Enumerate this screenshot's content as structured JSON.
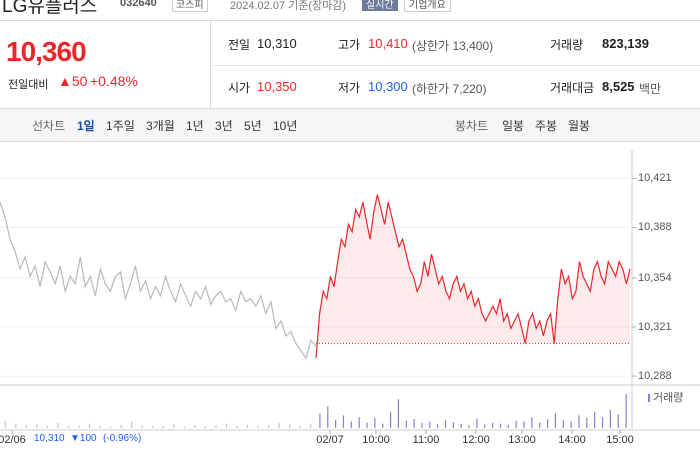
{
  "header": {
    "name": "LG유플러스",
    "code": "032640",
    "market": "코스피",
    "date": "2024.02.07 기준(장마감)",
    "realtime": "실시간",
    "company": "기업개요"
  },
  "quote": {
    "price": "10,360",
    "change_label": "전일대비",
    "change": "▲50",
    "percent": "+0.48%"
  },
  "table": {
    "rows": [
      [
        [
          "전일",
          "10,310",
          ""
        ],
        [
          "고가",
          "10,410",
          "(상한가 13,400)"
        ],
        [
          "거래량",
          "823,139",
          ""
        ]
      ],
      [
        [
          "시가",
          "10,350",
          ""
        ],
        [
          "저가",
          "10,300",
          "(하한가 7,220)"
        ],
        [
          "거래대금",
          "8,525",
          "백만"
        ]
      ]
    ]
  },
  "tabs": {
    "line": "선차트",
    "line_items": [
      "1일",
      "1주일",
      "3개월",
      "1년",
      "3년",
      "5년",
      "10년"
    ],
    "candle": "봉차트",
    "candle_items": [
      "일봉",
      "주봉",
      "월봉"
    ]
  },
  "chart_data": {
    "type": "line",
    "ylim": [
      10282,
      10440
    ],
    "yticks": [
      {
        "value": 10421,
        "label": "10,421"
      },
      {
        "value": 10388,
        "label": "10,388"
      },
      {
        "value": 10354,
        "label": "10,354"
      },
      {
        "value": 10321,
        "label": "10,321"
      },
      {
        "value": 10288,
        "label": "10,288"
      }
    ],
    "xticks": [
      "02/06",
      "02/07",
      "10:00",
      "11:00",
      "12:00",
      "13:00",
      "14:00",
      "15:00"
    ],
    "reference_line": 10310,
    "series": [
      {
        "color": "#b9b9b9",
        "values": [
          10405,
          10395,
          10380,
          10372,
          10360,
          10368,
          10355,
          10362,
          10348,
          10365,
          10358,
          10350,
          10362,
          10345,
          10355,
          10350,
          10368,
          10348,
          10355,
          10342,
          10360,
          10350,
          10345,
          10355,
          10358,
          10340,
          10350,
          10362,
          10345,
          10352,
          10340,
          10348,
          10342,
          10355,
          10345,
          10338,
          10350,
          10342,
          10335,
          10345,
          10340,
          10348,
          10336,
          10342,
          10345,
          10338,
          10340,
          10332,
          10345,
          10338,
          10340,
          10335,
          10342,
          10330,
          10338,
          10320,
          10325,
          10315,
          10318,
          10310,
          10305,
          10300,
          10312,
          10308
        ]
      },
      {
        "color": "#e8272c",
        "values": [
          10300,
          10330,
          10345,
          10340,
          10355,
          10348,
          10365,
          10380,
          10375,
          10390,
          10385,
          10400,
          10395,
          10405,
          10392,
          10380,
          10398,
          10410,
          10400,
          10390,
          10405,
          10395,
          10385,
          10375,
          10380,
          10370,
          10360,
          10355,
          10345,
          10350,
          10365,
          10355,
          10370,
          10360,
          10350,
          10355,
          10345,
          10340,
          10350,
          10355,
          10345,
          10350,
          10340,
          10345,
          10335,
          10340,
          10330,
          10325,
          10330,
          10335,
          10330,
          10340,
          10325,
          10330,
          10320,
          10325,
          10330,
          10320,
          10310,
          10325,
          10330,
          10320,
          10325,
          10315,
          10325,
          10330,
          10310,
          10340,
          10360,
          10350,
          10355,
          10340,
          10345,
          10365,
          10355,
          10350,
          10345,
          10360,
          10365,
          10355,
          10350,
          10365,
          10360,
          10355,
          10365,
          10360,
          10350,
          10360
        ]
      }
    ],
    "volume_lim": [
      0,
      100
    ],
    "volume_series": [
      {
        "color": "#c4c4c4",
        "values": [
          20,
          12,
          8,
          10,
          6,
          14,
          5,
          8,
          12,
          6,
          4,
          9,
          18,
          7,
          5,
          6,
          10,
          4,
          8,
          5,
          7,
          12,
          6,
          9,
          5,
          8,
          14,
          10,
          6,
          12
        ]
      },
      {
        "name": "거래량",
        "color": "#8a7fd0",
        "values": [
          40,
          60,
          22,
          35,
          18,
          30,
          15,
          28,
          12,
          45,
          80,
          20,
          25,
          14,
          18,
          10,
          22,
          16,
          12,
          8,
          26,
          10,
          14,
          12,
          9,
          20,
          18,
          30,
          15,
          24,
          40,
          22,
          18,
          35,
          28,
          45,
          30,
          50,
          38,
          95
        ]
      }
    ]
  },
  "footer": {
    "date": "02/06",
    "price": "10,310",
    "change": "▼100",
    "percent": "(-0.96%)"
  }
}
